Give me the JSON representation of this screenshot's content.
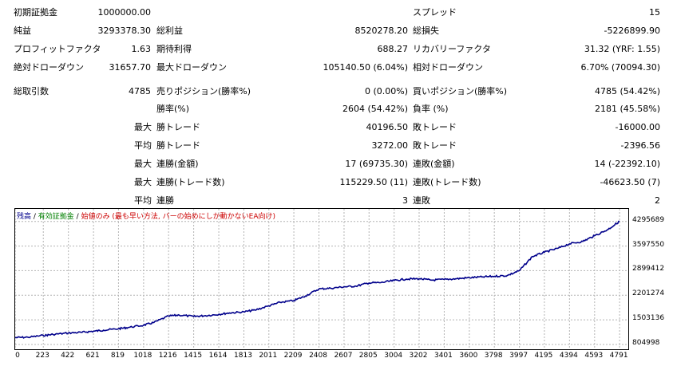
{
  "stats": {
    "initial_deposit": {
      "label": "初期証拠金",
      "value": "1000000.00"
    },
    "spread": {
      "label": "スプレッド",
      "value": "15"
    },
    "net_profit": {
      "label": "純益",
      "value": "3293378.30"
    },
    "gross_profit": {
      "label": "総利益",
      "value": "8520278.20"
    },
    "gross_loss": {
      "label": "総損失",
      "value": "-5226899.90"
    },
    "profit_factor": {
      "label": "プロフィットファクタ",
      "value": "1.63"
    },
    "expected_payoff": {
      "label": "期待利得",
      "value": "688.27"
    },
    "recovery_factor": {
      "label": "リカバリーファクタ",
      "value": "31.32 (YRF: 1.55)"
    },
    "abs_drawdown": {
      "label": "絶対ドローダウン",
      "value": "31657.70"
    },
    "max_drawdown": {
      "label": "最大ドローダウン",
      "value": "105140.50 (6.04%)"
    },
    "rel_drawdown": {
      "label": "相対ドローダウン",
      "value": "6.70% (70094.30)"
    },
    "total_trades": {
      "label": "総取引数",
      "value": "4785"
    },
    "short_positions": {
      "label": "売りポジション(勝率%)",
      "value": "0 (0.00%)"
    },
    "long_positions": {
      "label": "買いポジション(勝率%)",
      "value": "4785 (54.42%)"
    },
    "win_rate": {
      "label": "勝率(%)",
      "value": "2604 (54.42%)"
    },
    "loss_rate": {
      "label": "負率 (%)",
      "value": "2181 (45.58%)"
    },
    "largest": {
      "prefix": "最大",
      "win_label": "勝トレード",
      "win": "40196.50",
      "loss_label": "敗トレード",
      "loss": "-16000.00"
    },
    "average": {
      "prefix": "平均",
      "win_label": "勝トレード",
      "win": "3272.00",
      "loss_label": "敗トレード",
      "loss": "-2396.56"
    },
    "max_consec_amount": {
      "prefix": "最大",
      "win_label": "連勝(金額)",
      "win": "17 (69735.30)",
      "loss_label": "連敗(金額)",
      "loss": "14 (-22392.10)"
    },
    "max_consec_trades": {
      "prefix": "最大",
      "win_label": "連勝(トレード数)",
      "win": "115229.50 (11)",
      "loss_label": "連敗(トレード数)",
      "loss": "-46623.50 (7)"
    },
    "avg_consec": {
      "prefix": "平均",
      "win_label": "連勝",
      "win": "3",
      "loss_label": "連敗",
      "loss": "2"
    }
  },
  "legend": {
    "balance": "残高",
    "sep1": " / ",
    "equity": "有効証拠金",
    "sep2": " / ",
    "profit_only": "始値のみ (最も早い方法, バーの始めにしか動かないEA向け)",
    "balance_color": "#00008b",
    "equity_color": "#008000",
    "profit_only_color": "#cc0000"
  },
  "chart_data": {
    "type": "line",
    "series": [
      {
        "name": "残高",
        "color": "#00008b",
        "x": [
          0,
          100,
          223,
          300,
          422,
          530,
          621,
          700,
          819,
          900,
          1018,
          1100,
          1216,
          1300,
          1415,
          1500,
          1614,
          1700,
          1813,
          1900,
          2011,
          2100,
          2209,
          2300,
          2408,
          2500,
          2607,
          2700,
          2805,
          2900,
          3004,
          3100,
          3202,
          3300,
          3401,
          3500,
          3600,
          3700,
          3798,
          3900,
          3997,
          4100,
          4195,
          4300,
          4394,
          4500,
          4593,
          4700,
          4791
        ],
        "y": [
          1000000,
          1010000,
          1060000,
          1090000,
          1130000,
          1150000,
          1180000,
          1210000,
          1250000,
          1290000,
          1350000,
          1430000,
          1610000,
          1640000,
          1600000,
          1620000,
          1660000,
          1700000,
          1730000,
          1780000,
          1900000,
          2000000,
          2050000,
          2180000,
          2380000,
          2400000,
          2440000,
          2460000,
          2550000,
          2560000,
          2620000,
          2660000,
          2670000,
          2630000,
          2650000,
          2670000,
          2700000,
          2720000,
          2740000,
          2760000,
          2900000,
          3300000,
          3420000,
          3530000,
          3660000,
          3730000,
          3890000,
          4070000,
          4300000
        ]
      }
    ],
    "x_ticks": [
      0,
      223,
      422,
      621,
      819,
      1018,
      1216,
      1415,
      1614,
      1813,
      2011,
      2209,
      2408,
      2607,
      2805,
      3004,
      3202,
      3401,
      3600,
      3798,
      3997,
      4195,
      4394,
      4593,
      4791
    ],
    "y_ticks": [
      804998,
      1503136,
      2201274,
      2899412,
      3597550,
      4295689
    ],
    "xlim": [
      0,
      4860
    ],
    "ylim": [
      804998,
      4470000
    ],
    "grid": true
  }
}
